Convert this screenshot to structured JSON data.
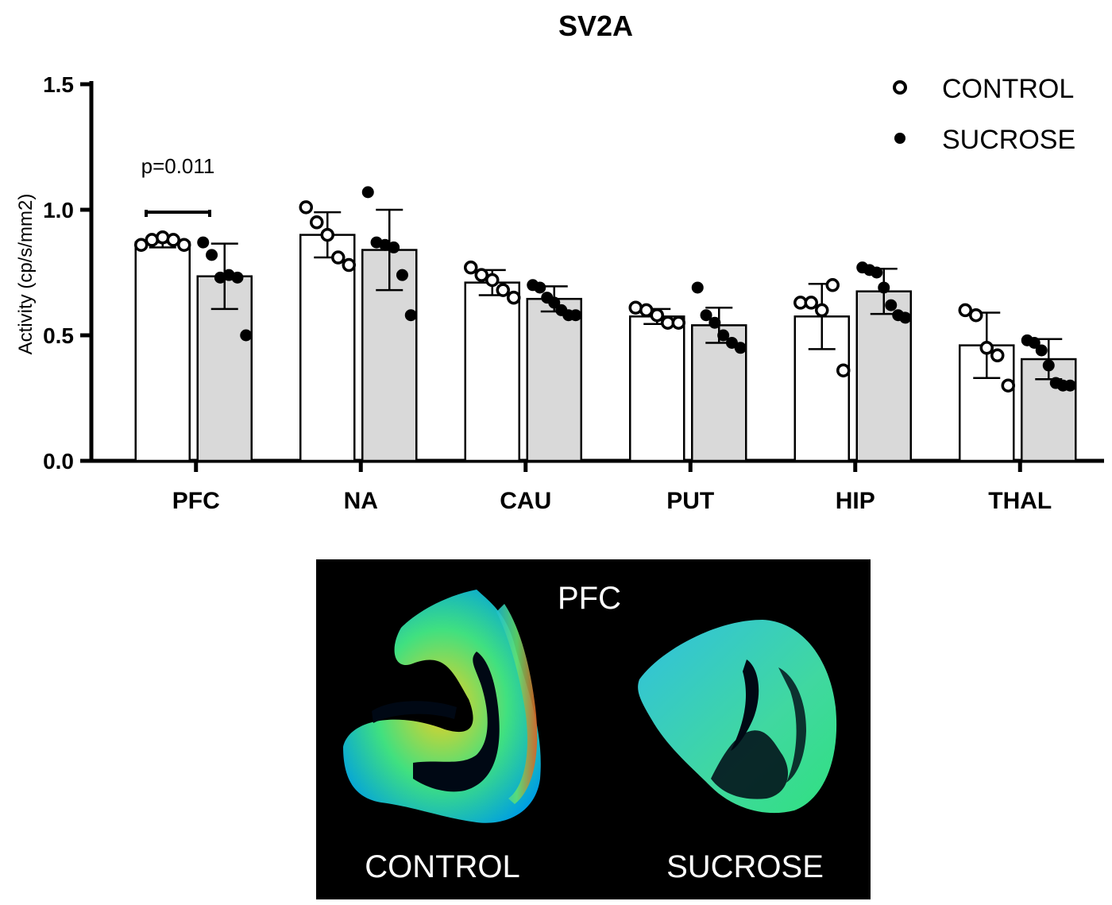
{
  "chart_data": {
    "type": "bar",
    "title": "SV2A",
    "ylabel": "Activity (cp/s/mm2)",
    "xlabel": "",
    "ylim": [
      0,
      1.5
    ],
    "yticks": [
      "0.0",
      "0.5",
      "1.0",
      "1.5"
    ],
    "categories": [
      "PFC",
      "NA",
      "CAU",
      "PUT",
      "HIP",
      "THAL"
    ],
    "legend_position": "top-right",
    "series": [
      {
        "name": "CONTROL",
        "fill": "#ffffff",
        "marker": "open-circle",
        "means": [
          0.87,
          0.9,
          0.71,
          0.575,
          0.575,
          0.46
        ],
        "sd": [
          0.02,
          0.09,
          0.05,
          0.03,
          0.13,
          0.13
        ],
        "points": [
          [
            0.86,
            0.88,
            0.89,
            0.88,
            0.86
          ],
          [
            1.01,
            0.95,
            0.9,
            0.81,
            0.78
          ],
          [
            0.77,
            0.74,
            0.72,
            0.68,
            0.65
          ],
          [
            0.61,
            0.6,
            0.58,
            0.55,
            0.55
          ],
          [
            0.63,
            0.63,
            0.6,
            0.7,
            0.36
          ],
          [
            0.6,
            0.58,
            0.45,
            0.42,
            0.3
          ]
        ]
      },
      {
        "name": "SUCROSE",
        "fill": "#d9d9d9",
        "marker": "filled-circle",
        "means": [
          0.735,
          0.84,
          0.645,
          0.54,
          0.675,
          0.405
        ],
        "sd": [
          0.13,
          0.16,
          0.05,
          0.07,
          0.09,
          0.08
        ],
        "points": [
          [
            0.87,
            0.82,
            0.73,
            0.74,
            0.73,
            0.5
          ],
          [
            1.07,
            0.87,
            0.86,
            0.85,
            0.74,
            0.58
          ],
          [
            0.7,
            0.69,
            0.65,
            0.63,
            0.6,
            0.58,
            0.58
          ],
          [
            0.69,
            0.58,
            0.55,
            0.5,
            0.47,
            0.45
          ],
          [
            0.77,
            0.76,
            0.75,
            0.69,
            0.62,
            0.58,
            0.57
          ],
          [
            0.48,
            0.47,
            0.44,
            0.38,
            0.31,
            0.3,
            0.3
          ]
        ]
      }
    ],
    "annotations": [
      {
        "category": "PFC",
        "text": "p=0.011"
      }
    ]
  },
  "image_panel": {
    "region_label": "PFC",
    "left_label": "CONTROL",
    "right_label": "SUCROSE",
    "background": "#000000"
  },
  "colors": {
    "axis": "#000000",
    "control_bar": "#ffffff",
    "sucrose_bar": "#d9d9d9",
    "heat_low": "#00a0e0",
    "heat_mid": "#40e080",
    "heat_high": "#e05020"
  }
}
